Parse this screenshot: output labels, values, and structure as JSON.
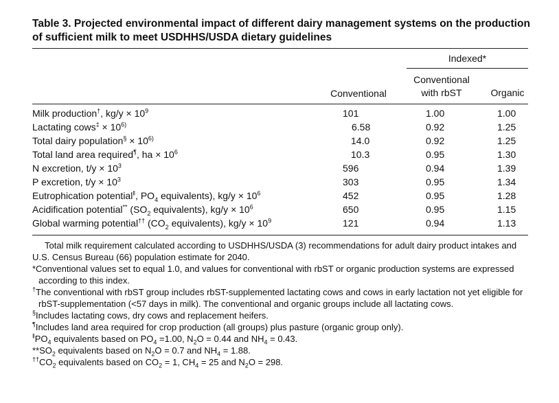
{
  "title": "Table 3. Projected environmental impact of different dairy management systems on the production of sufficient milk to meet USDHHS/USDA dietary guidelines",
  "headers": {
    "indexed": "Indexed*",
    "conventional": "Conventional",
    "rbst_line1": "Conventional",
    "rbst_line2": "with rbST",
    "organic": "Organic"
  },
  "rows": [
    {
      "label": "Milk production",
      "sup": "†",
      "unit": ", kg/y × 10",
      "exp": "9",
      "conventional": "101",
      "rbst": "1.00",
      "organic": "1.00"
    },
    {
      "label": "Lactating cows",
      "sup": "‡",
      "unit": " × 10",
      "exp": "6)",
      "conventional": "6.58",
      "rbst": "0.92",
      "organic": "1.25"
    },
    {
      "label": "Total dairy population",
      "sup": "§",
      "unit": " × 10",
      "exp": "6)",
      "conventional": "14.0",
      "rbst": "0.92",
      "organic": "1.25"
    },
    {
      "label": "Total land area required",
      "sup": "¶",
      "unit": ", ha × 10",
      "exp": "6",
      "conventional": "10.3",
      "rbst": "0.95",
      "organic": "1.30"
    },
    {
      "label": "N excretion, t/y × 10",
      "sup": "",
      "unit": "",
      "exp": "3",
      "conventional": "596",
      "rbst": "0.94",
      "organic": "1.39"
    },
    {
      "label": "P excretion, t/y × 10",
      "sup": "",
      "unit": "",
      "exp": "3",
      "conventional": "303",
      "rbst": "0.95",
      "organic": "1.34"
    },
    {
      "label": "Eutrophication potential",
      "sup": "ǁ",
      "pre": ", PO",
      "sub": "4",
      "unit": " equivalents), kg/y × 10",
      "exp": "6",
      "conventional": "452",
      "rbst": "0.95",
      "organic": "1.28"
    },
    {
      "label": "Acidification potential",
      "sup": "**",
      "pre": " (SO",
      "sub": "2",
      "unit": " equivalents), kg/y × 10",
      "exp": "6",
      "conventional": "650",
      "rbst": "0.95",
      "organic": "1.15"
    },
    {
      "label": "Global warming potential",
      "sup": "††",
      "pre": " (CO",
      "sub": "2",
      "unit": " equivalents), kg/y × 10",
      "exp": "9",
      "conventional": "121",
      "rbst": "0.94",
      "organic": "1.13"
    }
  ],
  "notes": {
    "n0": "Total milk requirement calculated according to USDHHS/USDA (3) recommendations for adult dairy product intakes and U.S. Census Bureau (66) population estimate for 2040.",
    "n1": "*Conventional values set to equal 1.0, and values for conventional with rbST or organic production systems are expressed according to this index.",
    "n2_mark": "†",
    "n2": "The conventional with rbST group includes rbST-supplemented lactating cows and cows in early lactation not yet eligible for rbST-supplementation (<57 days in milk). The conventional and organic groups include all lactating cows.",
    "n3_mark": "§",
    "n3": "Includes lactating cows, dry cows and replacement heifers.",
    "n4_mark": "¶",
    "n4": "Includes land area required for crop production (all groups) plus pasture (organic group only).",
    "n5_mark": "ǁ",
    "n5_a": "PO",
    "n5_a_sub": "4",
    "n5_b": " equivalents based on PO",
    "n5_b_sub": "4",
    "n5_c": " =1.00, N",
    "n5_c_sub": "2",
    "n5_d": "O = 0.44 and NH",
    "n5_d_sub": "4",
    "n5_e": " = 0.43.",
    "n6_a": "**SO",
    "n6_a_sub": "2",
    "n6_b": " equivalents based on N",
    "n6_b_sub": "2",
    "n6_c": "O = 0.7 and NH",
    "n6_c_sub": "4",
    "n6_d": " = 1.88.",
    "n7_mark": "††",
    "n7_a": "CO",
    "n7_a_sub": "2",
    "n7_b": " equivalents based on CO",
    "n7_b_sub": "2",
    "n7_c": " = 1, CH",
    "n7_c_sub": "4",
    "n7_d": " = 25 and N",
    "n7_d_sub": "2",
    "n7_e": "O = 298."
  }
}
